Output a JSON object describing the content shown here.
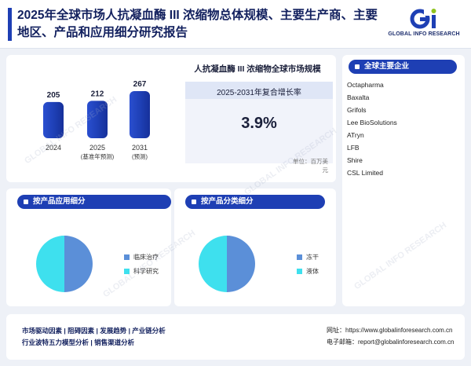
{
  "header": {
    "title": "2025年全球市场人抗凝血酶 III 浓缩物总体规模、主要生产商、主要地区、产品和应用细分研究报告"
  },
  "logo": {
    "text": "GLOBAL INFO RESEARCH",
    "brand_colors": [
      "#1e3fb4",
      "#8fc31f"
    ]
  },
  "market": {
    "title": "人抗凝血酶 III 浓缩物全球市场规模",
    "cagr_label": "2025-2031年复合增长率",
    "cagr_value": "3.9%",
    "unit": "单位：百万美元"
  },
  "chart_data": [
    {
      "type": "bar",
      "categories": [
        "2024",
        "2025",
        "2031"
      ],
      "category_notes": [
        "",
        "(基准年预测)",
        "(预测)"
      ],
      "values": [
        205,
        212,
        267
      ],
      "bar_color": "#1e3fb4"
    },
    {
      "type": "pie",
      "title": "按产品应用细分",
      "labels": [
        "临床治疗",
        "科学研究"
      ],
      "values": [
        50,
        50
      ],
      "colors": [
        "#5b8fd8",
        "#3ee0ee"
      ]
    },
    {
      "type": "pie",
      "title": "按产品分类细分",
      "labels": [
        "冻干",
        "液体"
      ],
      "values": [
        50,
        50
      ],
      "colors": [
        "#5b8fd8",
        "#3ee0ee"
      ]
    }
  ],
  "segments": {
    "application_title": "按产品应用细分",
    "type_title": "按产品分类细分"
  },
  "companies": {
    "title": "全球主要企业",
    "items": [
      "Octapharma",
      "Baxalta",
      "Grifols",
      "Lee BioSolutions",
      "ATryn",
      "LFB",
      "Shire",
      "CSL Limited"
    ]
  },
  "footer": {
    "links_line1": "市场驱动因素  |  阻碍因素  |  发展趋势  |  产业链分析",
    "links_line2": "行业波特五力模型分析  |  销售渠道分析",
    "website": "网址：https://www.globalinforesearch.com.cn",
    "email": "电子邮箱：report@globalinforesearch.com.cn"
  },
  "watermark": "GLOBAL INFO RESEARCH"
}
